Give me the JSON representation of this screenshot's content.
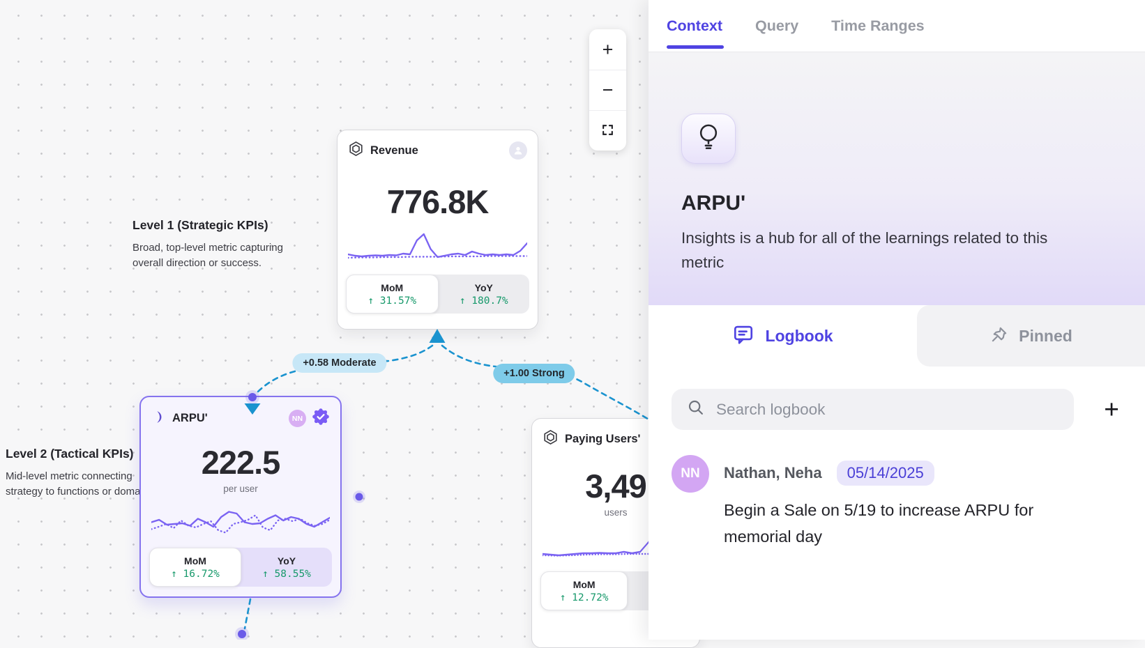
{
  "colors": {
    "accent_purple": "#4f43e2",
    "sparkline_purple": "#7a63f2",
    "positive_green": "#17996b",
    "edge_blue": "#1a93cf",
    "moderate_pill_bg": "#c7e7f7",
    "strong_pill_bg": "#7ecbe9",
    "selected_card_border": "#8573ee",
    "nn_avatar_bg": "#d3a6f3"
  },
  "canvas": {
    "toolbar": {
      "zoom_in_glyph": "+",
      "zoom_out_glyph": "−"
    },
    "levels": [
      {
        "title": "Level 1 (Strategic KPIs)",
        "description_lines": [
          "Broad, top-level metric capturing",
          "overall direction or success."
        ]
      },
      {
        "title": "Level 2 (Tactical KPIs)",
        "description_lines": [
          "Mid-level metric connecting",
          "strategy to functions or domains."
        ]
      }
    ],
    "edges": [
      {
        "label": "+0.58 Moderate",
        "strength": "Moderate",
        "value": "+0.58"
      },
      {
        "label": "+1.00 Strong",
        "strength": "Strong",
        "value": "+1.00"
      }
    ],
    "cards": {
      "revenue": {
        "title": "Revenue",
        "icon": "hexagon-badge-icon",
        "value": "776.8K",
        "unit": "",
        "mom_label": "MoM",
        "mom_value": "↑ 31.57%",
        "yoy_label": "YoY",
        "yoy_value": "↑ 180.7%",
        "sparkline": {
          "solid": [
            70,
            74,
            76,
            74,
            73,
            74,
            72,
            73,
            68,
            70,
            30,
            12,
            55,
            78,
            74,
            70,
            68,
            72,
            62,
            68,
            72,
            70,
            72,
            70,
            72,
            60,
            38
          ],
          "dotted": [
            80,
            79,
            79,
            78,
            78,
            77,
            77,
            77,
            76,
            76,
            76,
            75,
            75,
            75,
            75
          ]
        }
      },
      "arpu": {
        "title": "ARPU'",
        "icon": "crescent-icon",
        "selected": true,
        "collaborator_initials": "NN",
        "verified": true,
        "value": "222.5",
        "unit": "per user",
        "mom_label": "MoM",
        "mom_value": "↑ 16.72%",
        "yoy_label": "YoY",
        "yoy_value": "↑ 58.55%",
        "sparkline": {
          "solid": [
            55,
            48,
            62,
            60,
            58,
            65,
            45,
            55,
            68,
            40,
            25,
            30,
            55,
            60,
            58,
            45,
            35,
            50,
            40,
            45,
            60,
            68,
            55,
            42
          ],
          "dotted": [
            75,
            68,
            60,
            72,
            50,
            65,
            70,
            60,
            52,
            78,
            85,
            60,
            55,
            48,
            35,
            70,
            78,
            50,
            45,
            52,
            45,
            58,
            65,
            60,
            48
          ]
        }
      },
      "paying_users": {
        "title": "Paying Users'",
        "icon": "hexagon-badge-icon",
        "value": "3,49",
        "unit": "users",
        "mom_label": "MoM",
        "mom_value": "↑ 12.72%",
        "sparkline": {
          "solid": [
            78,
            80,
            82,
            80,
            78,
            76,
            76,
            75,
            76,
            76,
            72,
            76,
            72,
            45,
            15,
            40,
            62,
            58,
            60
          ],
          "dotted": [
            82,
            83,
            82,
            80,
            79,
            79,
            78,
            78,
            78,
            78,
            78
          ]
        }
      }
    }
  },
  "panel": {
    "tabs": [
      {
        "label": "Context"
      },
      {
        "label": "Query"
      },
      {
        "label": "Time Ranges"
      }
    ],
    "active_tab": "Context",
    "metric": {
      "name": "ARPU'",
      "description": "Insights is a hub for all of the learnings related to this metric"
    },
    "section_tabs": {
      "logbook_label": "Logbook",
      "pinned_label": "Pinned",
      "active": "Logbook"
    },
    "search": {
      "placeholder": "Search logbook"
    },
    "add_button_glyph": "+",
    "logbook_entries": [
      {
        "author": "Nathan, Neha",
        "author_initials": "NN",
        "date": "05/14/2025",
        "text": "Begin a Sale on 5/19 to increase ARPU for memorial day"
      }
    ]
  }
}
